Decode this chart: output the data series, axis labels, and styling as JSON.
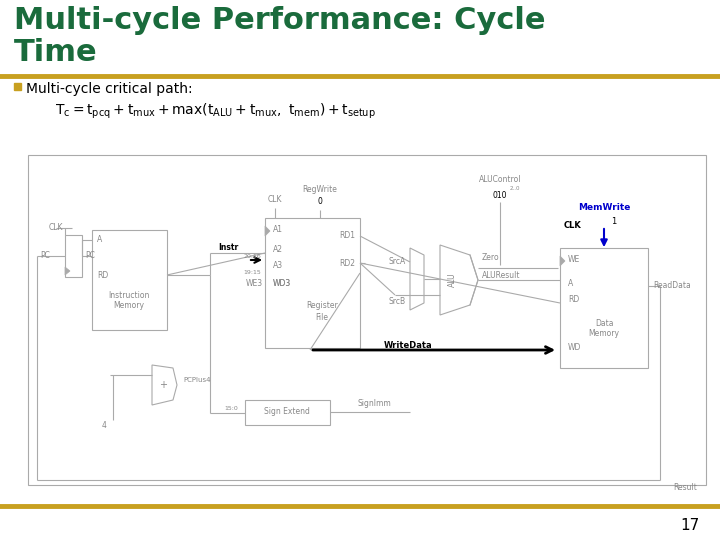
{
  "title_line1": "Multi-cycle Performance: Cycle",
  "title_line2": "Time",
  "title_color": "#1a6b3c",
  "divider_color": "#c8a020",
  "bullet_color": "#c8a020",
  "bullet_text": "Multi-cycle critical path:",
  "page_number": "17",
  "bg_color": "#ffffff",
  "diagram_color": "#aaaaaa",
  "diagram_dark": "#888888",
  "highlight_color": "#0000cc",
  "black": "#000000",
  "title_fontsize": 22,
  "bullet_fontsize": 10,
  "formula_fontsize": 10
}
